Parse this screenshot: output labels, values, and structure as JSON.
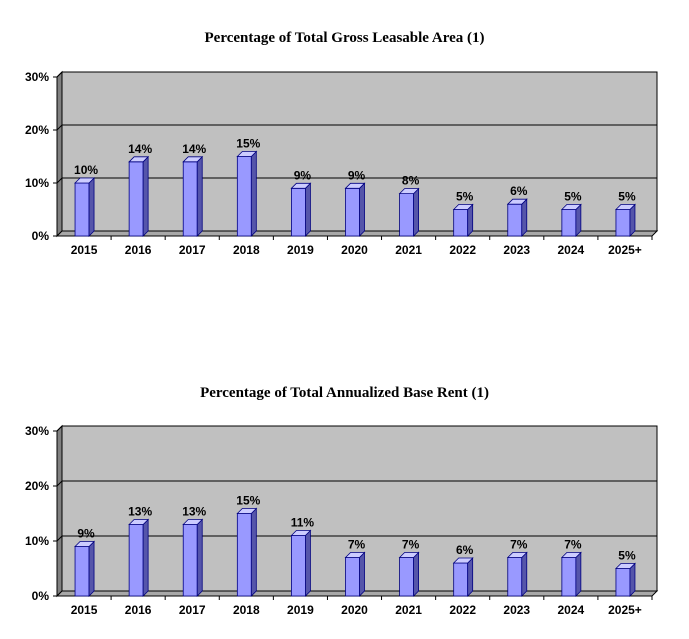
{
  "chart_data": [
    {
      "type": "bar",
      "title": "Percentage of Total Gross Leasable Area (1)",
      "categories": [
        "2015",
        "2016",
        "2017",
        "2018",
        "2019",
        "2020",
        "2021",
        "2022",
        "2023",
        "2024",
        "2025+"
      ],
      "values": [
        10,
        14,
        14,
        15,
        9,
        9,
        8,
        5,
        6,
        5,
        5
      ],
      "data_labels": [
        "10%",
        "14%",
        "14%",
        "15%",
        "9%",
        "9%",
        "8%",
        "5%",
        "6%",
        "5%",
        "5%"
      ],
      "y_ticks": [
        "0%",
        "10%",
        "20%",
        "30%"
      ],
      "ylim": [
        0,
        30
      ],
      "xlabel": "",
      "ylabel": "",
      "grid": true,
      "legend": "none"
    },
    {
      "type": "bar",
      "title": "Percentage of Total Annualized Base Rent (1)",
      "categories": [
        "2015",
        "2016",
        "2017",
        "2018",
        "2019",
        "2020",
        "2021",
        "2022",
        "2023",
        "2024",
        "2025+"
      ],
      "values": [
        9,
        13,
        13,
        15,
        11,
        7,
        7,
        6,
        7,
        7,
        5
      ],
      "data_labels": [
        "9%",
        "13%",
        "13%",
        "15%",
        "11%",
        "7%",
        "7%",
        "6%",
        "7%",
        "7%",
        "5%"
      ],
      "y_ticks": [
        "0%",
        "10%",
        "20%",
        "30%"
      ],
      "ylim": [
        0,
        30
      ],
      "xlabel": "",
      "ylabel": "",
      "grid": true,
      "legend": "none"
    }
  ],
  "colors": {
    "plot_back": "#c0c0c0",
    "plot_left_wall": "#808080",
    "bar_front": "#9999ff",
    "bar_side": "#5555aa",
    "bar_top": "#ccccff",
    "bar_outline": "#000080",
    "grid": "#000000"
  }
}
